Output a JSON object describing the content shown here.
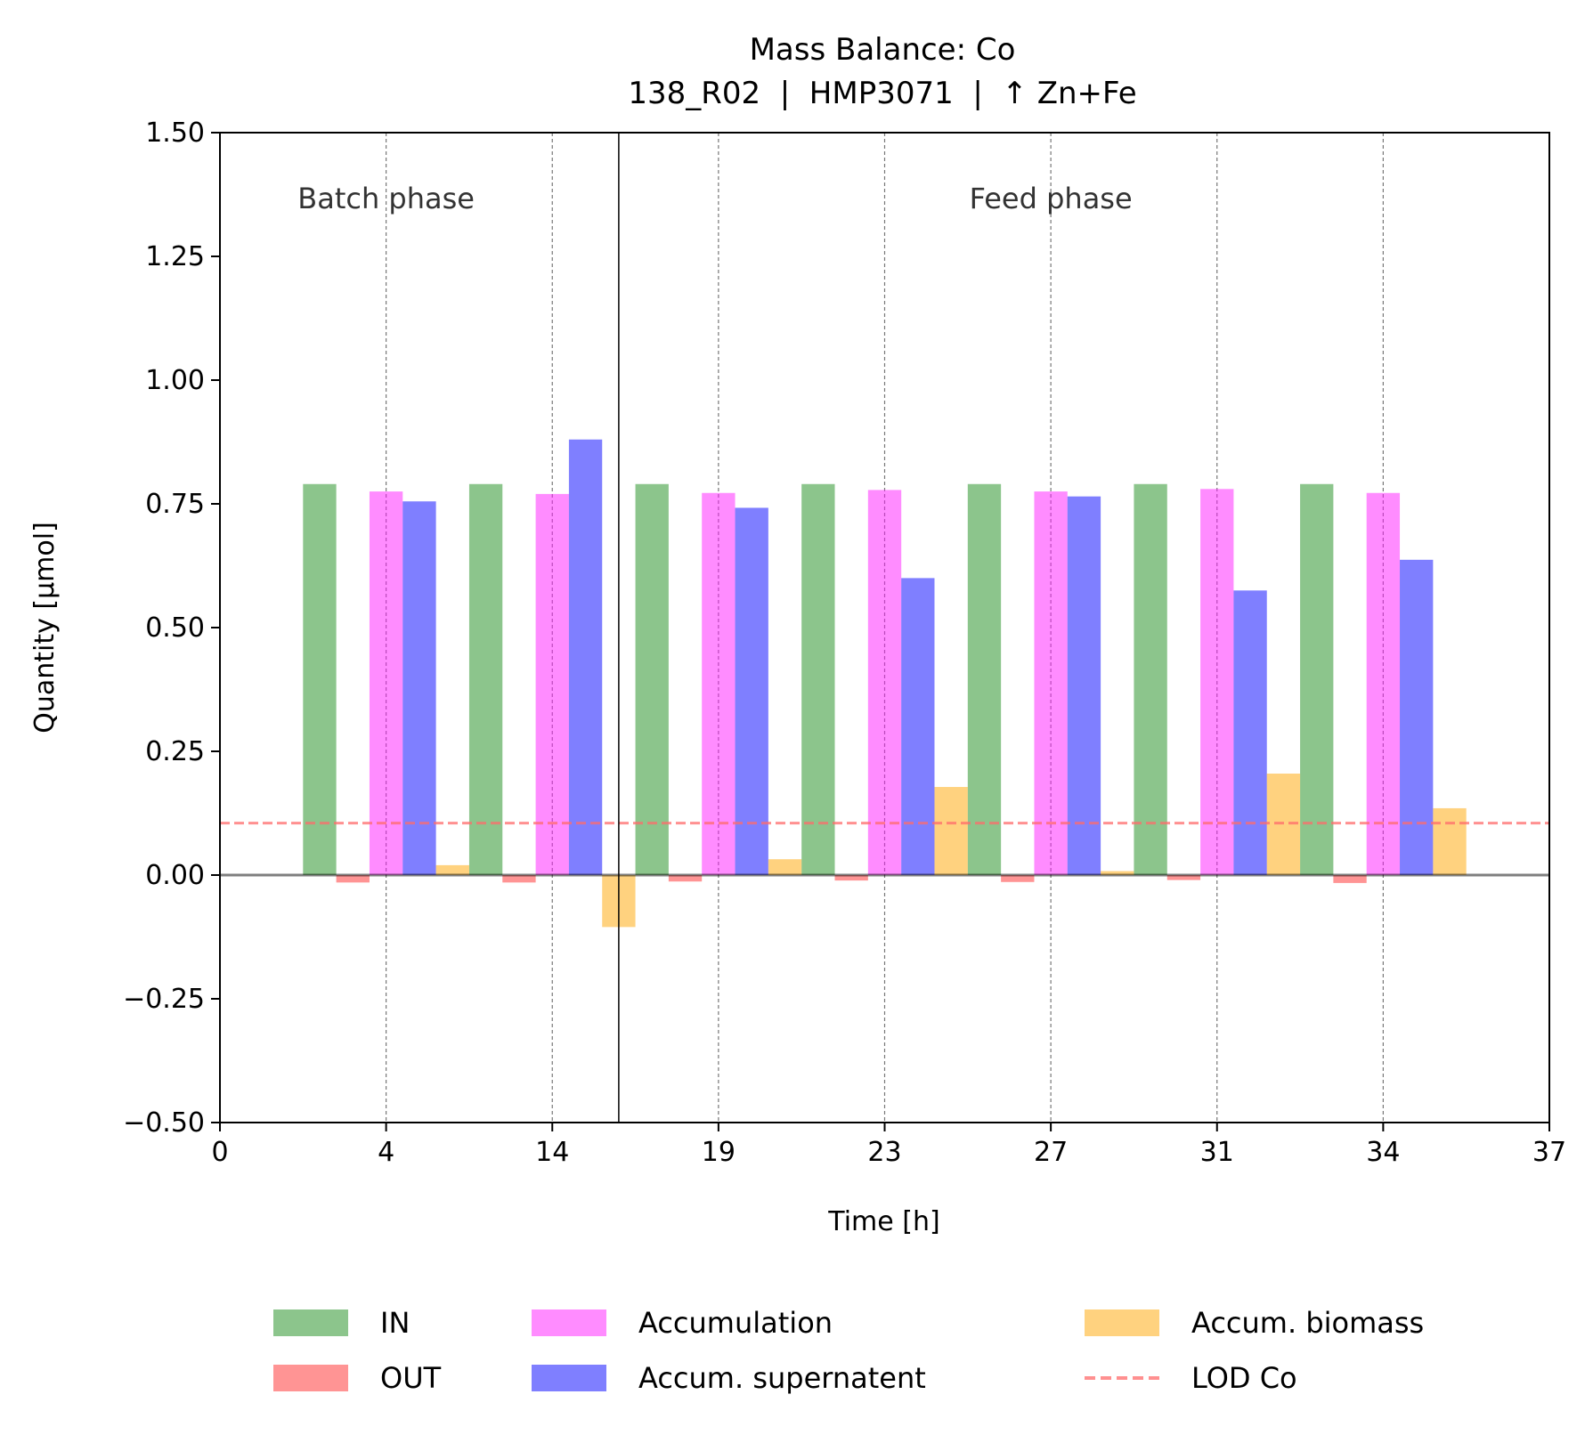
{
  "chart_data": {
    "type": "bar",
    "title": "Mass Balance: Co",
    "subtitle": "138_R02  |  HMP3071  |  ↑ Zn+Fe",
    "xlabel": "Time [h]",
    "ylabel": "Quantity [μmol]",
    "ylim": [
      -0.5,
      1.5
    ],
    "yticks": [
      "−0.50",
      "−0.25",
      "0.00",
      "0.25",
      "0.50",
      "0.75",
      "1.00",
      "1.25",
      "1.50"
    ],
    "ytick_values": [
      -0.5,
      -0.25,
      0,
      0.25,
      0.5,
      0.75,
      1.0,
      1.25,
      1.5
    ],
    "xticks": [
      "0",
      "4",
      "14",
      "19",
      "23",
      "27",
      "31",
      "34",
      "37"
    ],
    "categories": [
      "4",
      "14",
      "19",
      "23",
      "27",
      "31",
      "34",
      "37"
    ],
    "series": [
      {
        "name": "IN",
        "color": "#1a8c1a",
        "values": [
          0.79,
          0.79,
          0.79,
          0.79,
          0.79,
          0.79,
          0.79,
          0.0
        ]
      },
      {
        "name": "OUT",
        "color": "#ff2a2a",
        "values": [
          -0.015,
          -0.015,
          -0.013,
          -0.011,
          -0.014,
          -0.01,
          -0.016,
          0.0
        ]
      },
      {
        "name": "Accumulation",
        "color": "#ff1aff",
        "values": [
          0.775,
          0.77,
          0.772,
          0.778,
          0.775,
          0.78,
          0.772,
          0.0
        ]
      },
      {
        "name": "Accum. supernatent",
        "color": "#0000ff",
        "values": [
          0.755,
          0.88,
          0.742,
          0.6,
          0.765,
          0.575,
          0.637,
          0.0
        ]
      },
      {
        "name": "Accum. biomass",
        "color": "#ffa500",
        "values": [
          0.02,
          -0.105,
          0.032,
          0.178,
          0.008,
          0.205,
          0.135,
          0.0
        ]
      }
    ],
    "lod": {
      "name": "LOD Co",
      "value": 0.105,
      "color": "#ff6b6b"
    },
    "phases": [
      {
        "label": "Batch phase",
        "slot_from": 0,
        "slot_to": 2
      },
      {
        "label": "Feed phase",
        "slot_from": 2,
        "slot_to": 8
      }
    ],
    "phase_boundary_slot": 2.4,
    "grid": "vertical dashed at x ticks",
    "legend_placement": "bottom-center",
    "legend_order": [
      "IN",
      "Accumulation",
      "Accum. biomass",
      "OUT",
      "Accum. supernatent",
      "LOD Co"
    ]
  }
}
